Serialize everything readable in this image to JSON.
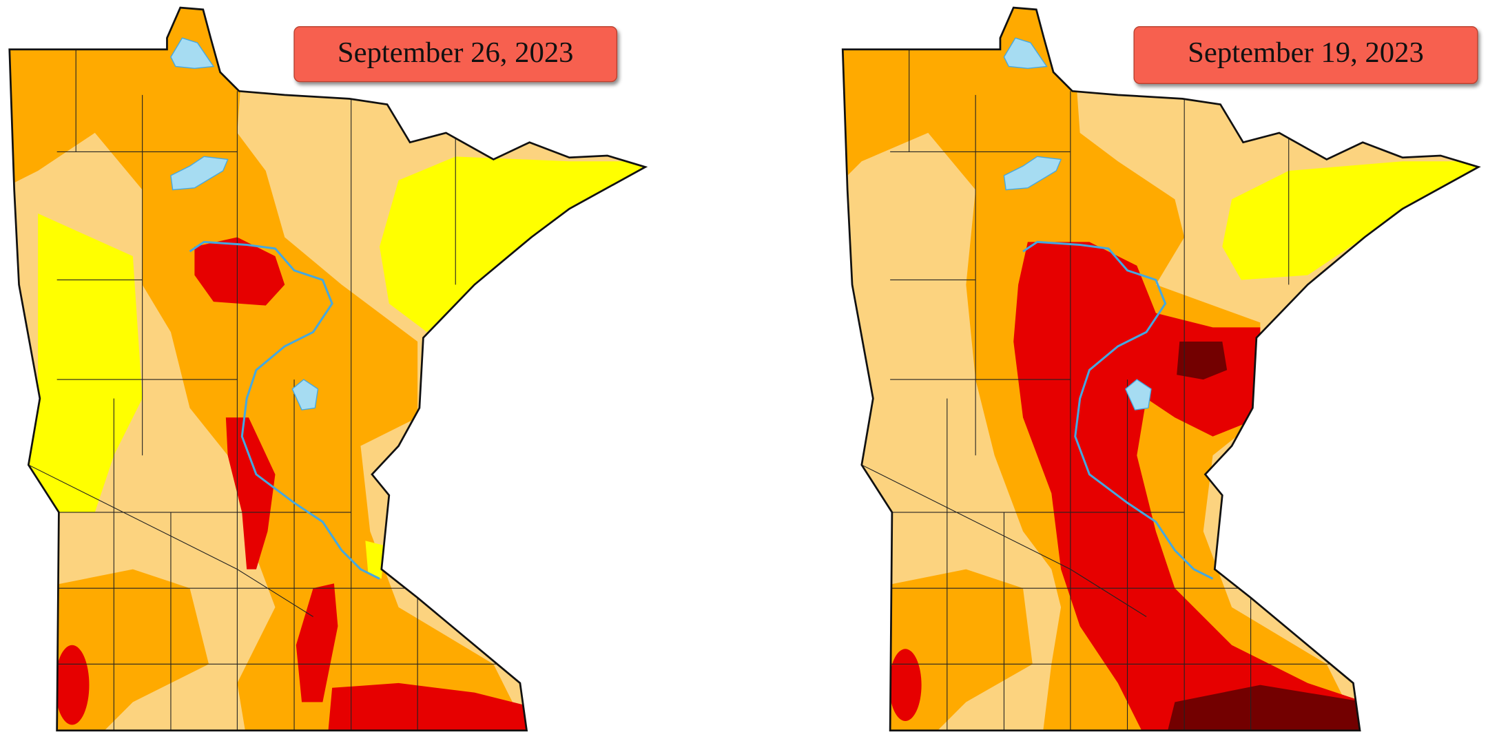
{
  "maps": [
    {
      "date_label": "September 26, 2023"
    },
    {
      "date_label": "September 19, 2023"
    }
  ]
}
